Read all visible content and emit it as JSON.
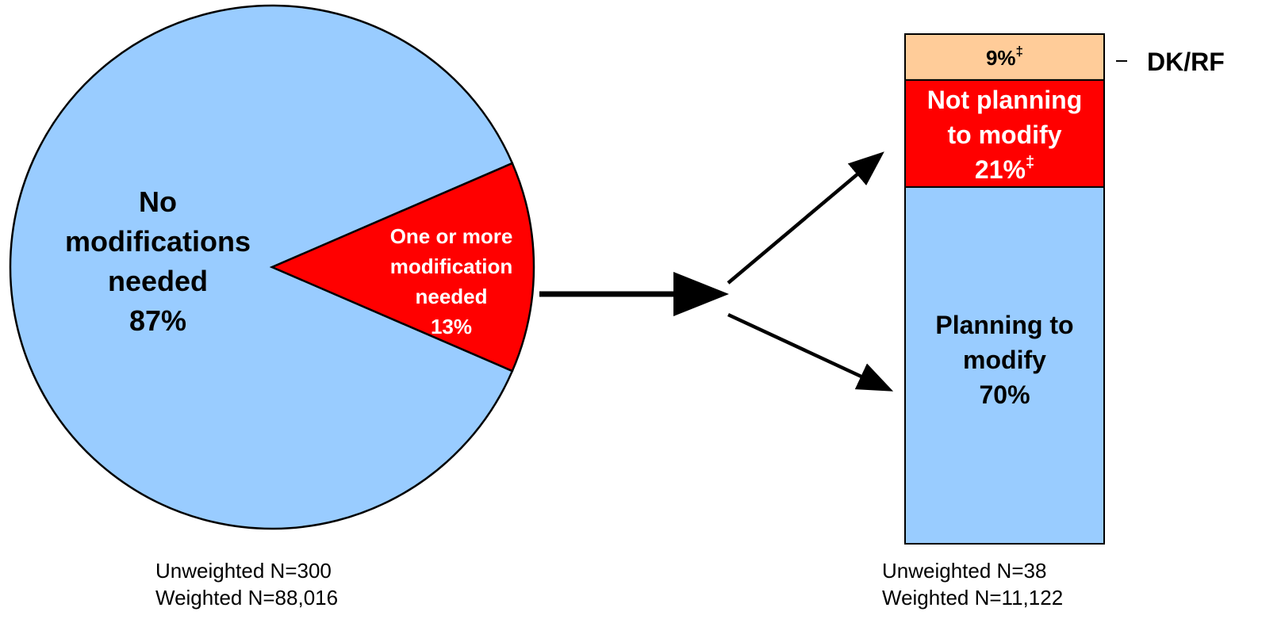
{
  "colors": {
    "blue": "#99ccff",
    "red": "#ff0000",
    "tan": "#ffcc99",
    "outline": "#000000"
  },
  "chart_data": [
    {
      "type": "pie",
      "slices": [
        {
          "key": "no_mod",
          "value": 87,
          "label_lines": [
            "No",
            "modifications",
            "needed",
            "87%"
          ],
          "color": "#99ccff"
        },
        {
          "key": "one_or_more",
          "value": 13,
          "label_lines": [
            "One or more",
            "modification",
            "needed",
            "13%"
          ],
          "color": "#ff0000"
        }
      ],
      "notes": [
        "Unweighted N=300",
        "Weighted N=88,016"
      ]
    },
    {
      "type": "bar",
      "stacked": true,
      "segments": [
        {
          "key": "planning",
          "value": 70,
          "label_lines": [
            "Planning to",
            "modify",
            "70%"
          ],
          "color": "#99ccff"
        },
        {
          "key": "not_planning",
          "value": 21,
          "label_lines": [
            "Not planning",
            "to modify",
            "21%"
          ],
          "footnote": "‡",
          "color": "#ff0000"
        },
        {
          "key": "dkrf",
          "value": 9,
          "label_lines": [
            "9%"
          ],
          "footnote": "‡",
          "color": "#ffcc99"
        }
      ],
      "outside_label": "DK/RF",
      "notes": [
        "Unweighted N=38",
        "Weighted N=11,122"
      ]
    }
  ]
}
